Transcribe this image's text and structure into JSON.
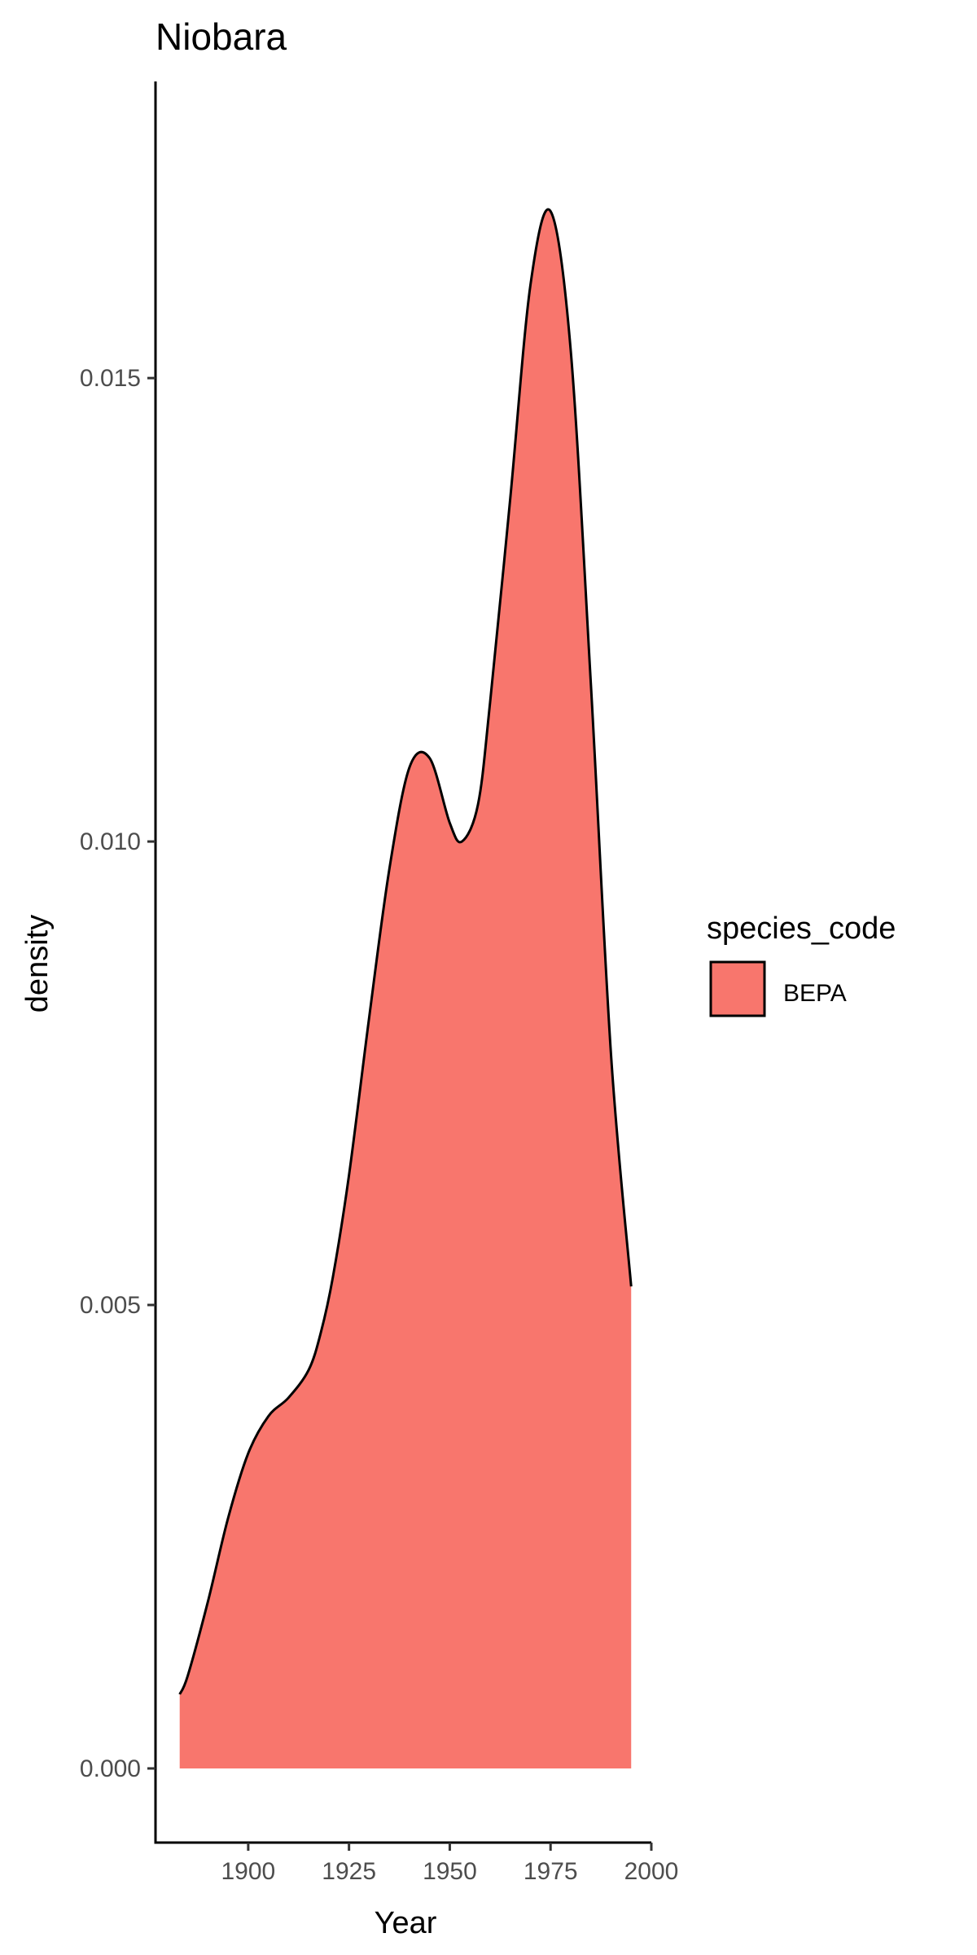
{
  "chart_data": {
    "type": "area",
    "title": "Niobara",
    "xlabel": "Year",
    "ylabel": "density",
    "xlim": [
      1877,
      2000
    ],
    "ylim": [
      -0.0008,
      0.0182
    ],
    "x_ticks": [
      1900,
      1925,
      1950,
      1975,
      2000
    ],
    "y_ticks": [
      0.0,
      0.005,
      0.01,
      0.015
    ],
    "y_tick_labels": [
      "0.000",
      "0.005",
      "0.010",
      "0.015"
    ],
    "grid": false,
    "legend": {
      "title": "species_code",
      "position": "right"
    },
    "series": [
      {
        "name": "BEPA",
        "fill": "#F8766D",
        "outline": "#000000",
        "x": [
          1883,
          1885,
          1890,
          1895,
          1900,
          1905,
          1910,
          1915,
          1918,
          1921,
          1925,
          1930,
          1935,
          1940,
          1945,
          1950,
          1953,
          1957,
          1960,
          1965,
          1970,
          1975,
          1980,
          1985,
          1990,
          1995
        ],
        "y": [
          0.0008,
          0.001,
          0.0018,
          0.0027,
          0.0034,
          0.0038,
          0.004,
          0.0043,
          0.0047,
          0.0053,
          0.0064,
          0.0081,
          0.0097,
          0.0108,
          0.0109,
          0.0102,
          0.01,
          0.0104,
          0.0115,
          0.0137,
          0.016,
          0.0168,
          0.0153,
          0.0117,
          0.0077,
          0.0052
        ]
      }
    ]
  }
}
